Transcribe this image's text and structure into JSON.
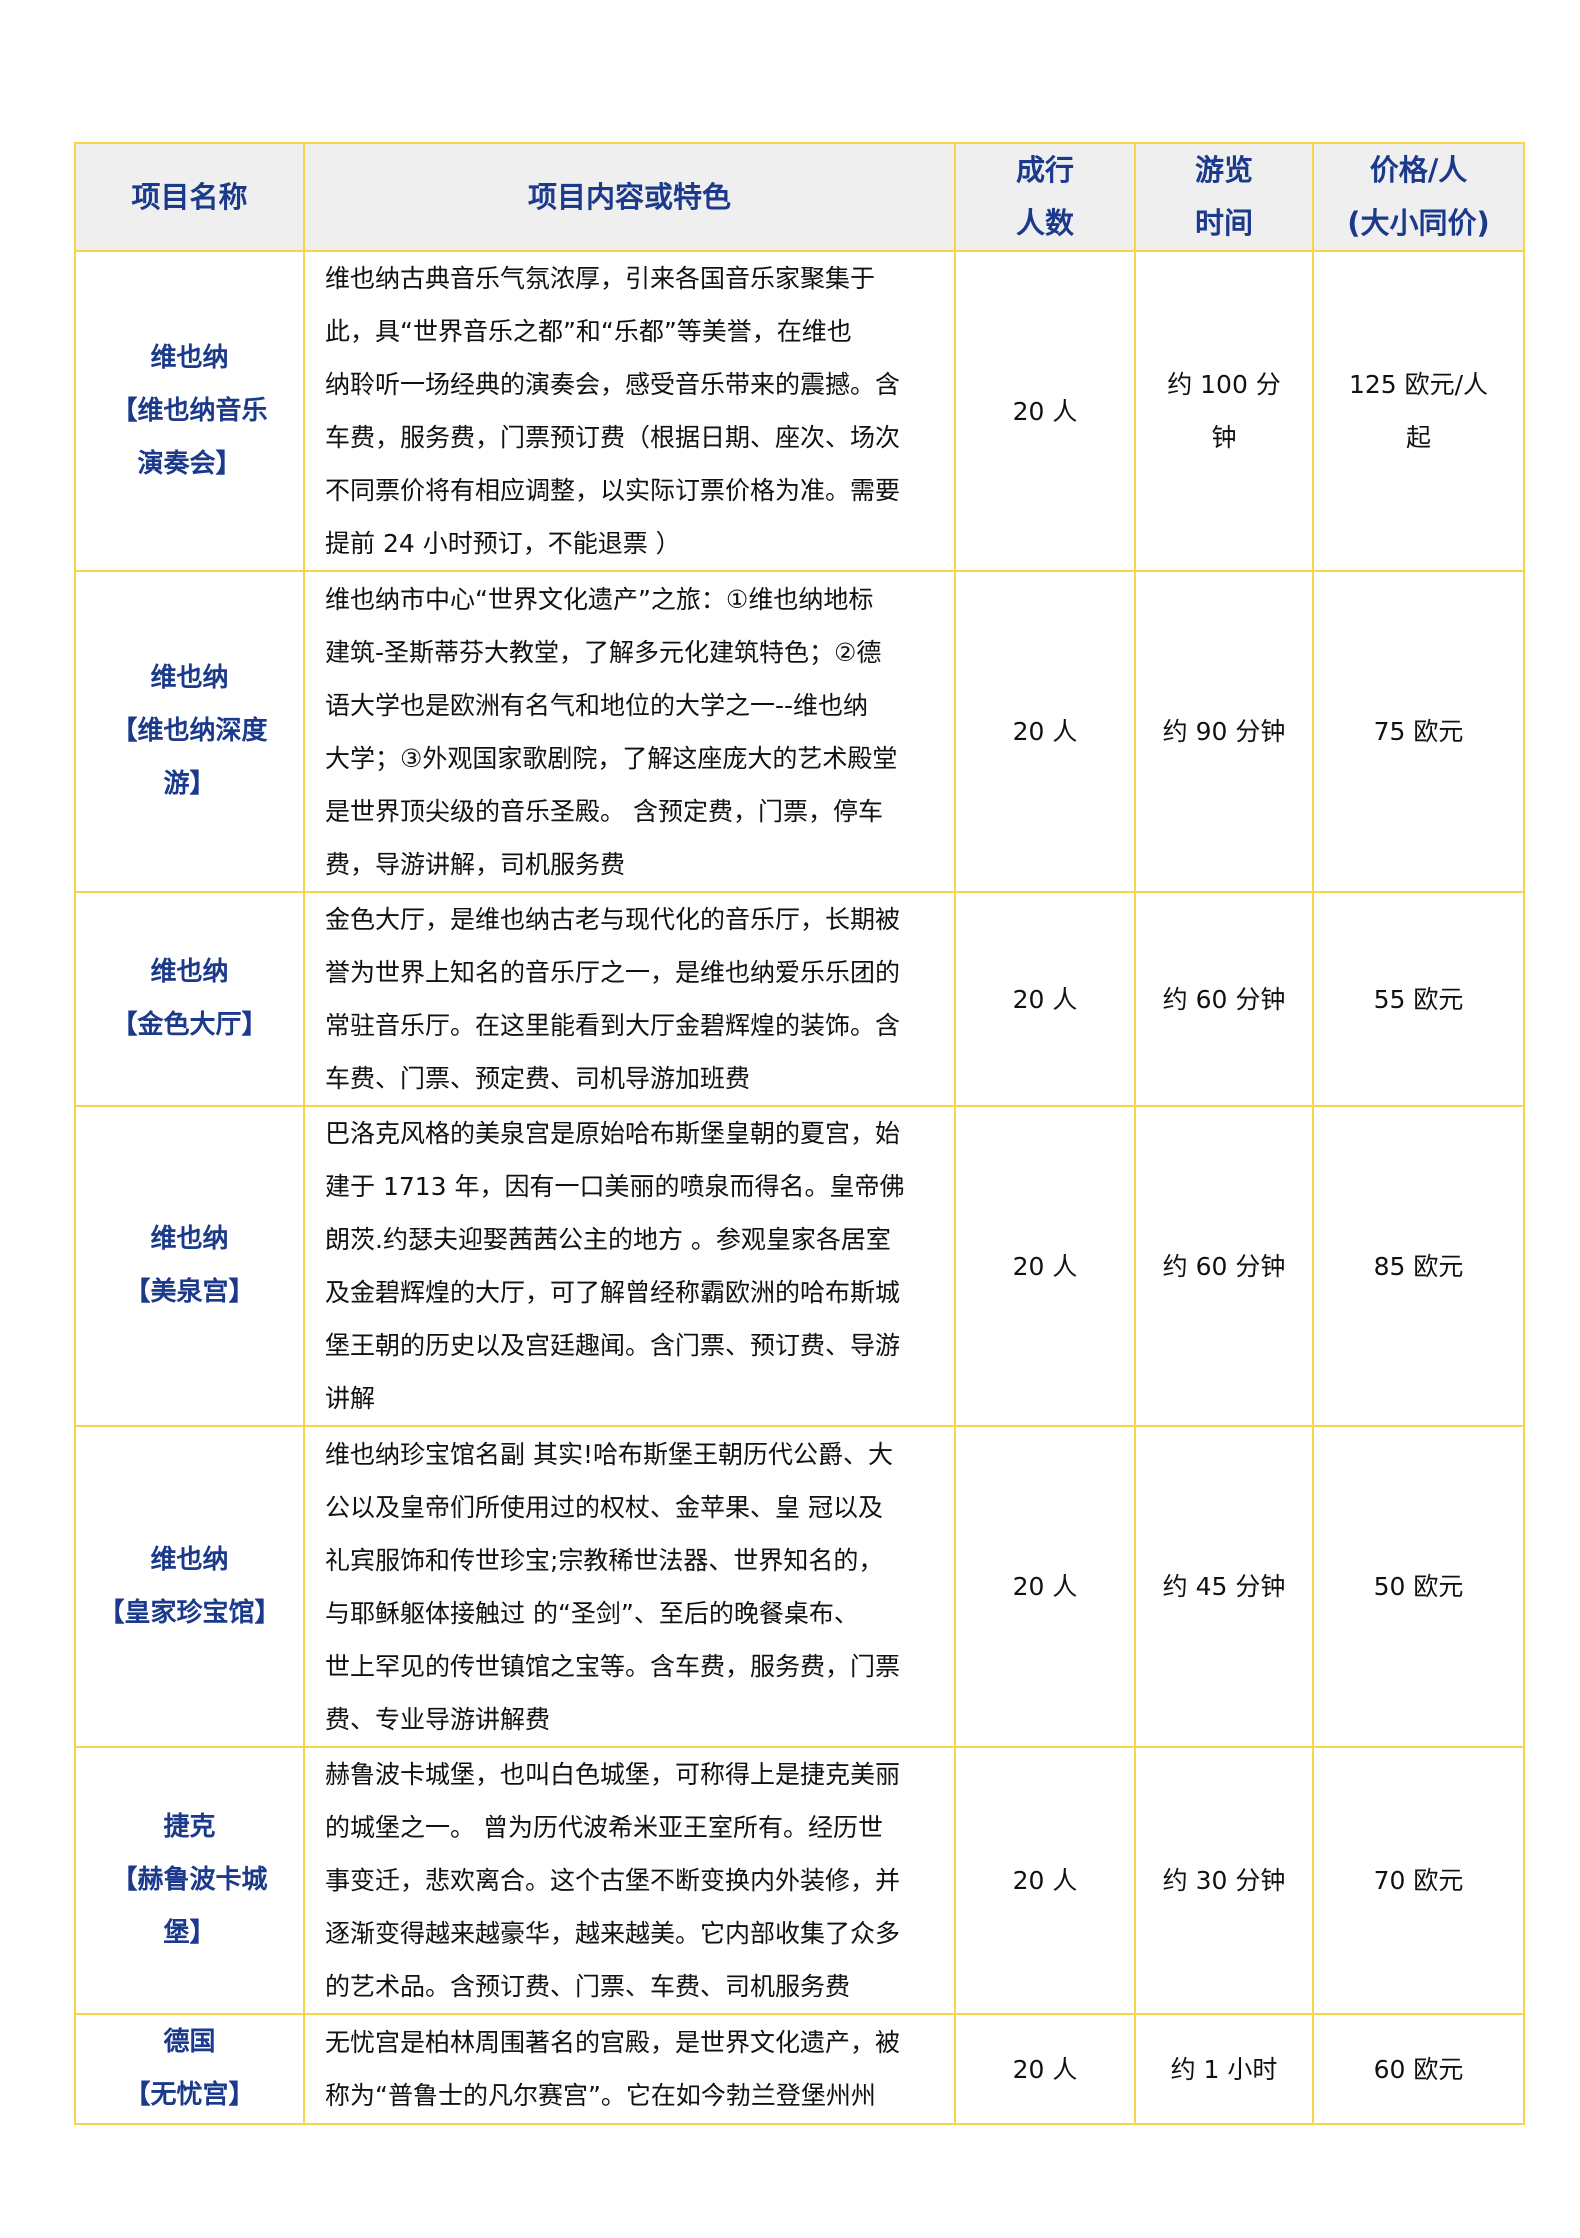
{
  "colors": {
    "border": "#f5d54a",
    "header_bg": "#efefef",
    "header_text": "#1c3a8c",
    "name_text": "#1c3a8c"
  },
  "header": {
    "name": [
      "项目名称"
    ],
    "content": [
      "项目内容或特色"
    ],
    "people": [
      "成行",
      "人数"
    ],
    "time": [
      "游览",
      "时间"
    ],
    "price": [
      "价格/人",
      "(大小同价)"
    ]
  },
  "rows": [
    {
      "name": [
        "维也纳",
        "【维也纳音乐",
        "演奏会】"
      ],
      "desc": [
        "维也纳古典音乐气氛浓厚，引来各国音乐家聚集于",
        "此，具“世界音乐之都”和“乐都”等美誉，在维也",
        "纳聆听一场经典的演奏会，感受音乐带来的震撼。含",
        "车费，服务费，门票预订费（根据日期、座次、场次",
        "不同票价将有相应调整，以实际订票价格为准。需要",
        "提前 24 小时预订，不能退票 ）"
      ],
      "people": [
        "20 人"
      ],
      "time": [
        "约 100 分",
        "钟"
      ],
      "price": [
        "125 欧元/人",
        "起"
      ]
    },
    {
      "name": [
        "维也纳",
        "【维也纳深度",
        "游】"
      ],
      "desc": [
        "维也纳市中心“世界文化遗产”之旅：①维也纳地标",
        "建筑-圣斯蒂芬大教堂，了解多元化建筑特色；②德",
        "语大学也是欧洲有名气和地位的大学之一--维也纳",
        "大学；③外观国家歌剧院，了解这座庞大的艺术殿堂",
        "是世界顶尖级的音乐圣殿。 含预定费，门票，停车",
        "费，导游讲解，司机服务费"
      ],
      "people": [
        "20 人"
      ],
      "time": [
        "约 90 分钟"
      ],
      "price": [
        "75 欧元"
      ]
    },
    {
      "name": [
        "维也纳",
        "【金色大厅】"
      ],
      "desc": [
        "金色大厅，是维也纳古老与现代化的音乐厅，长期被",
        "誉为世界上知名的音乐厅之一，是维也纳爱乐乐团的",
        "常驻音乐厅。在这里能看到大厅金碧辉煌的装饰。含",
        "车费、门票、预定费、司机导游加班费"
      ],
      "people": [
        "20 人"
      ],
      "time": [
        "约 60 分钟"
      ],
      "price": [
        "55 欧元"
      ]
    },
    {
      "name": [
        "维也纳",
        "【美泉宫】"
      ],
      "desc": [
        "巴洛克风格的美泉宫是原始哈布斯堡皇朝的夏宫，始",
        "建于 1713 年，因有一口美丽的喷泉而得名。皇帝佛",
        "朗茨.约瑟夫迎娶茜茜公主的地方 。参观皇家各居室",
        "及金碧辉煌的大厅，可了解曾经称霸欧洲的哈布斯城",
        "堡王朝的历史以及宫廷趣闻。含门票、预订费、导游",
        "讲解"
      ],
      "people": [
        "20 人"
      ],
      "time": [
        "约 60 分钟"
      ],
      "price": [
        "85 欧元"
      ]
    },
    {
      "name": [
        "维也纳",
        "【皇家珍宝馆】"
      ],
      "desc": [
        "维也纳珍宝馆名副 其实!哈布斯堡王朝历代公爵、大",
        "公以及皇帝们所使用过的权杖、金苹果、皇 冠以及",
        "礼宾服饰和传世珍宝;宗教稀世法器、世界知名的，",
        "与耶稣躯体接触过 的“圣剑”、至后的晚餐桌布、",
        "世上罕见的传世镇馆之宝等。含车费，服务费，门票",
        "费、专业导游讲解费"
      ],
      "people": [
        "20 人"
      ],
      "time": [
        "约 45 分钟"
      ],
      "price": [
        "50 欧元"
      ]
    },
    {
      "name": [
        "捷克",
        "【赫鲁波卡城",
        "堡】"
      ],
      "desc": [
        "赫鲁波卡城堡，也叫白色城堡，可称得上是捷克美丽",
        "的城堡之一。 曾为历代波希米亚王室所有。经历世",
        "事变迁，悲欢离合。这个古堡不断变换内外装修，并",
        "逐渐变得越来越豪华，越来越美。它内部收集了众多",
        "的艺术品。含预订费、门票、车费、司机服务费"
      ],
      "people": [
        "20 人"
      ],
      "time": [
        "约 30 分钟"
      ],
      "price": [
        "70 欧元"
      ]
    },
    {
      "name": [
        "德国",
        "【无忧宫】"
      ],
      "desc": [
        "无忧宫是柏林周围著名的宫殿，是世界文化遗产，被",
        "称为“普鲁士的凡尔赛宫”。它在如今勃兰登堡州州"
      ],
      "people": [
        "20 人"
      ],
      "time": [
        "约 1 小时"
      ],
      "price": [
        "60 欧元"
      ]
    }
  ]
}
